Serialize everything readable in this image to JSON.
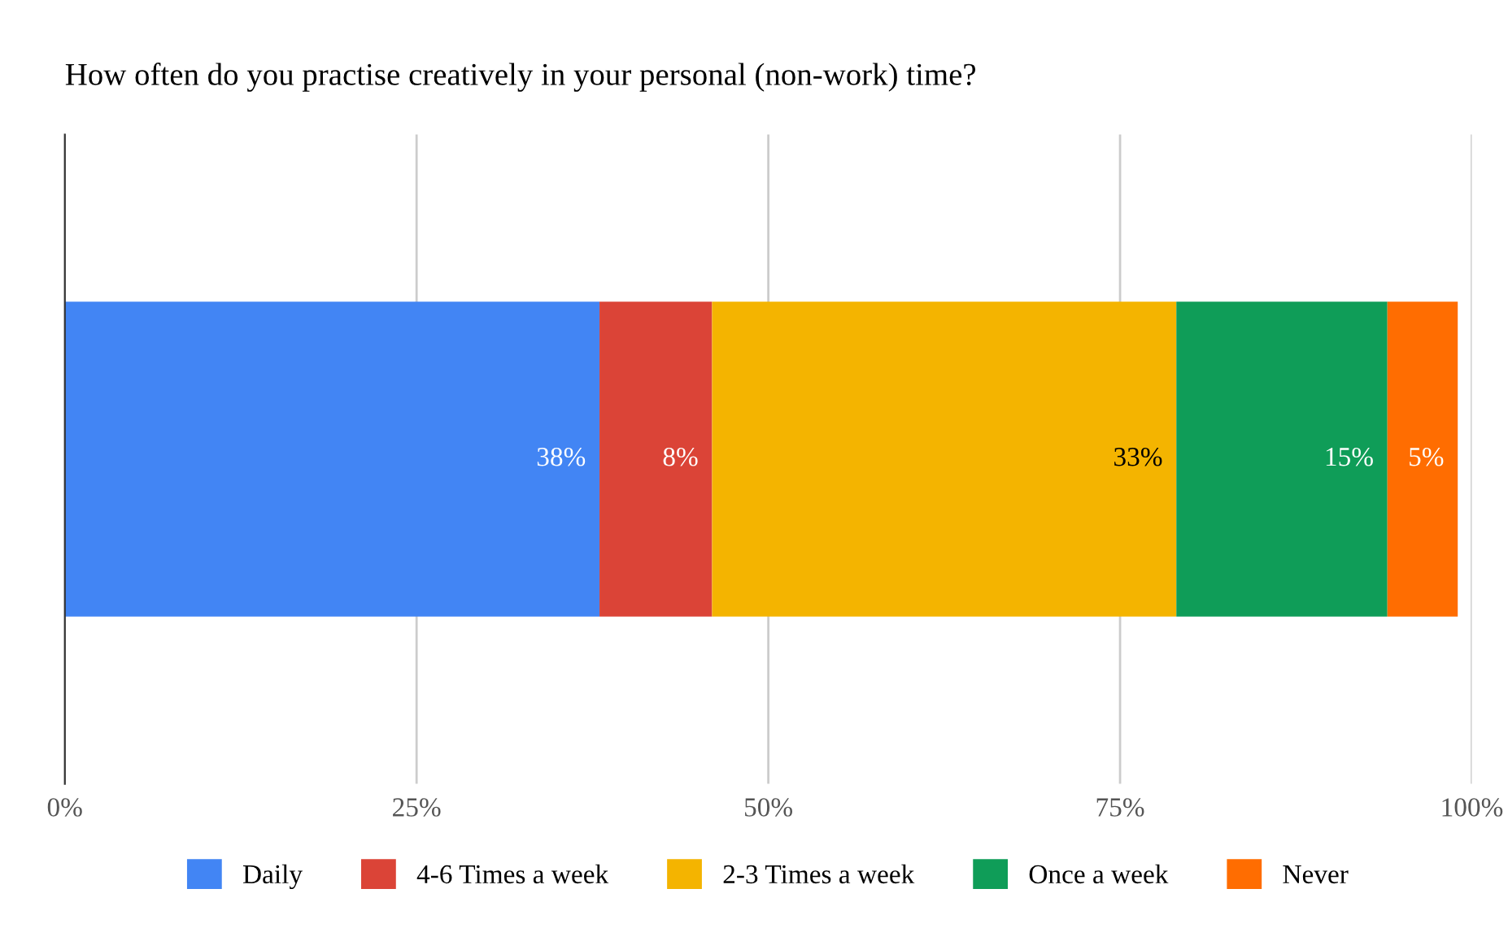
{
  "chart_data": {
    "type": "bar",
    "orientation": "horizontal",
    "stacked": true,
    "title": "How often do you practise creatively in your personal (non-work) time?",
    "categories": [
      null
    ],
    "series": [
      {
        "name": "Daily",
        "color": "#4285f4",
        "values": [
          38
        ],
        "value_labels": [
          "38%"
        ]
      },
      {
        "name": "4-6 Times a week",
        "color": "#db4437",
        "values": [
          8
        ],
        "value_labels": [
          "8%"
        ]
      },
      {
        "name": "2-3 Times a week",
        "color": "#f4b400",
        "values": [
          33
        ],
        "value_labels": [
          "33%"
        ]
      },
      {
        "name": "Once a week",
        "color": "#0f9d58",
        "values": [
          15
        ],
        "value_labels": [
          "15%"
        ]
      },
      {
        "name": "Never",
        "color": "#ff6d01",
        "values": [
          5
        ],
        "value_labels": [
          "5%"
        ]
      }
    ],
    "xlim": [
      0,
      100
    ],
    "xticks": [
      {
        "value": 0,
        "label": "0%"
      },
      {
        "value": 25,
        "label": "25%"
      },
      {
        "value": 50,
        "label": "50%"
      },
      {
        "value": 75,
        "label": "75%"
      },
      {
        "value": 100,
        "label": "100%"
      }
    ],
    "grid": "x",
    "legend": "bottom"
  }
}
